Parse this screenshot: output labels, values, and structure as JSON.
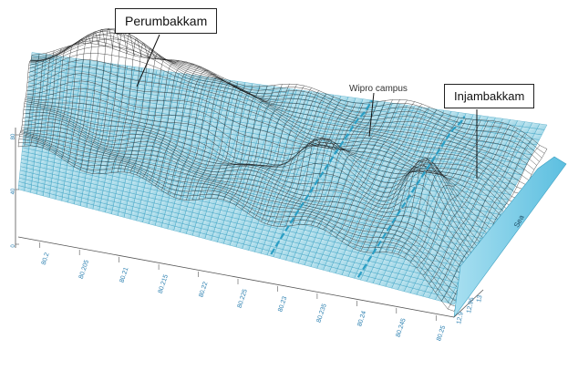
{
  "chart_data": {
    "type": "surface",
    "annotations": [
      {
        "label": "Perumbakkam",
        "style": "boxed"
      },
      {
        "label": "Wipro campus",
        "style": "plain"
      },
      {
        "label": "Injambakkam",
        "style": "boxed"
      },
      {
        "label": "Sea",
        "style": "plain"
      }
    ],
    "x_tick_labels": [
      "80.2",
      "80.205",
      "80.21",
      "80.215",
      "80.22",
      "80.225",
      "80.23",
      "80.235",
      "80.24",
      "80.245",
      "80.25"
    ],
    "y_tick_labels": [
      "12.9",
      "12.95",
      "13"
    ],
    "z_tick_labels": [
      "0",
      "40",
      "80"
    ],
    "layers": [
      {
        "name": "terrain surface",
        "mesh_color": "#1a1a1a"
      },
      {
        "name": "water surface",
        "mesh_color": "#3a9fc0",
        "fill_color": "#9fd6e6"
      }
    ],
    "colors": {
      "sea": "#6fc3dc",
      "channel": "#2b9ec4",
      "background": "#ffffff"
    }
  }
}
